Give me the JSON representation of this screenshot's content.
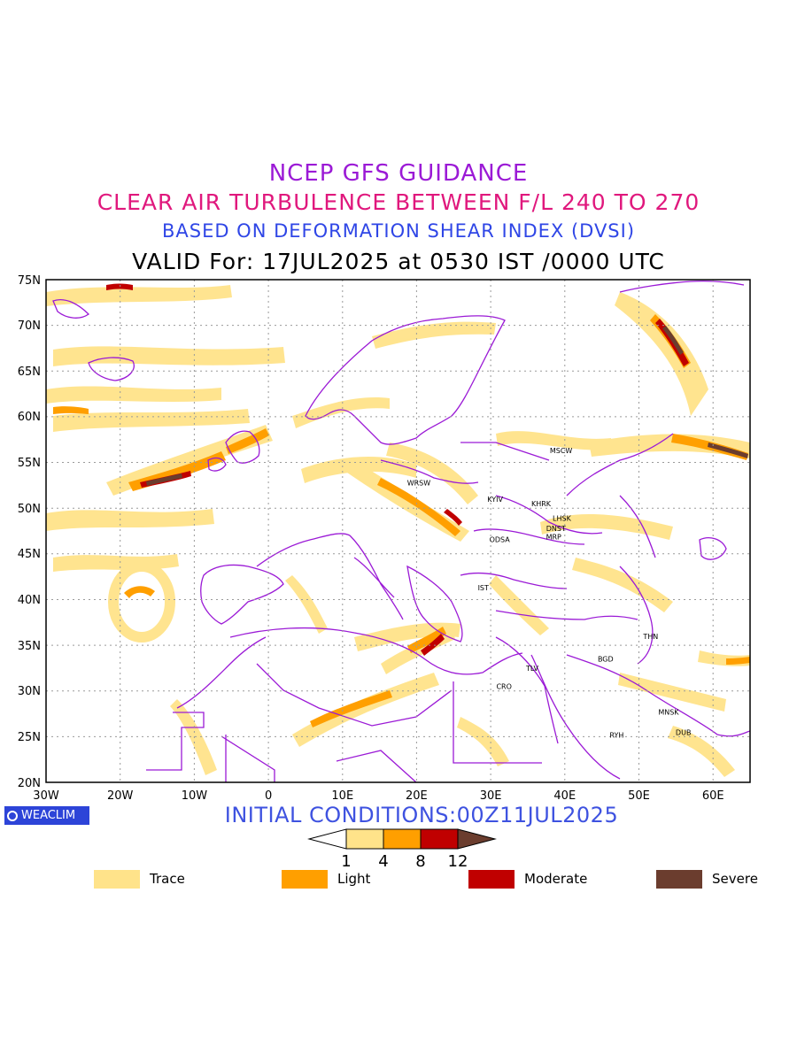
{
  "titles": {
    "line1": "NCEP GFS GUIDANCE",
    "line2": "CLEAR AIR TURBULENCE BETWEEN F/L 240 TO 270",
    "line3": "BASED ON DEFORMATION SHEAR INDEX (DVSI)",
    "line4": "VALID For: 17JUL2025 at 0530 IST /0000 UTC"
  },
  "axes": {
    "lat_labels": [
      "75N",
      "70N",
      "65N",
      "60N",
      "55N",
      "50N",
      "45N",
      "40N",
      "35N",
      "30N",
      "25N",
      "20N"
    ],
    "lon_labels": [
      "30W",
      "20W",
      "10W",
      "0",
      "10E",
      "20E",
      "30E",
      "40E",
      "50E",
      "60E"
    ]
  },
  "stations": [
    {
      "name": "MSCW",
      "lon": 39.5,
      "lat": 56.0
    },
    {
      "name": "WRSW",
      "lon": 20.3,
      "lat": 52.5
    },
    {
      "name": "KYIV",
      "lon": 30.6,
      "lat": 50.7
    },
    {
      "name": "KHRK",
      "lon": 36.8,
      "lat": 50.2
    },
    {
      "name": "LHSK",
      "lon": 39.6,
      "lat": 48.6
    },
    {
      "name": "DNST",
      "lon": 38.8,
      "lat": 47.5
    },
    {
      "name": "MRP",
      "lon": 38.5,
      "lat": 46.6
    },
    {
      "name": "ODSA",
      "lon": 31.2,
      "lat": 46.3
    },
    {
      "name": "IST",
      "lon": 29.0,
      "lat": 41.0
    },
    {
      "name": "THN",
      "lon": 51.6,
      "lat": 35.7
    },
    {
      "name": "BGD",
      "lon": 45.5,
      "lat": 33.2
    },
    {
      "name": "TLV",
      "lon": 35.6,
      "lat": 32.2
    },
    {
      "name": "CRO",
      "lon": 31.8,
      "lat": 30.2
    },
    {
      "name": "MNSK",
      "lon": 54.0,
      "lat": 27.4
    },
    {
      "name": "DUB",
      "lon": 56.0,
      "lat": 25.2
    },
    {
      "name": "RYH",
      "lon": 47.0,
      "lat": 24.9
    }
  ],
  "brand": "WEACLIM",
  "initial_conditions": "INITIAL CONDITIONS:00Z11JUL2025",
  "colorbar": {
    "ticks": [
      "1",
      "4",
      "8",
      "12"
    ],
    "colors": [
      "#ffe38a",
      "#ff9f00",
      "#c00000",
      "#6b3d2e"
    ]
  },
  "legend": [
    {
      "label": "Trace",
      "color": "#ffe38a"
    },
    {
      "label": "Light",
      "color": "#ff9f00"
    },
    {
      "label": "Moderate",
      "color": "#c00000"
    },
    {
      "label": "Severe",
      "color": "#6b3d2e"
    }
  ]
}
